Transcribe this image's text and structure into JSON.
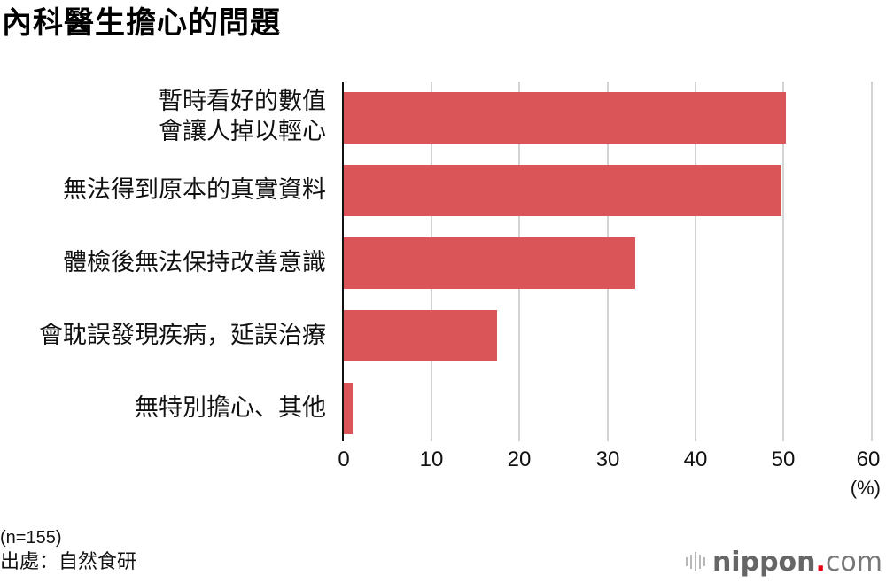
{
  "title": "內科醫生擔心的問題",
  "chart_data": {
    "type": "bar",
    "orientation": "horizontal",
    "title": "內科醫生擔心的問題",
    "categories": [
      "暫時看好的數值會讓人掉以輕心",
      "無法得到原本的真實資料",
      "體檢後無法保持改善意識",
      "會耽誤發現疾病，延誤治療",
      "無特別擔心、其他"
    ],
    "category_lines": [
      [
        "暫時看好的數值",
        "會讓人掉以輕心"
      ],
      [
        "無法得到原本的真實資料"
      ],
      [
        "體檢後無法保持改善意識"
      ],
      [
        "會耽誤發現疾病，延誤治療"
      ],
      [
        "無特別擔心、其他"
      ]
    ],
    "values": [
      50.2,
      49.7,
      33.1,
      17.4,
      1.0
    ],
    "xlabel": "(%)",
    "ylabel": "",
    "xlim": [
      0,
      60
    ],
    "xticks": [
      0,
      10,
      20,
      30,
      40,
      50,
      60
    ],
    "grid": true,
    "bar_color": "#d95558",
    "legend": null
  },
  "axis": {
    "ticks": [
      "0",
      "10",
      "20",
      "30",
      "40",
      "50",
      "60"
    ],
    "unit": "(%)"
  },
  "labels": {
    "bar1_line1": "暫時看好的數值",
    "bar1_line2": "會讓人掉以輕心",
    "bar2": "無法得到原本的真實資料",
    "bar3": "體檢後無法保持改善意識",
    "bar4": "會耽誤發現疾病，延誤治療",
    "bar5": "無特別擔心、其他"
  },
  "footer": {
    "sample": "(n=155)",
    "source": "出處：自然食研"
  },
  "logo": {
    "brand": "nippon",
    "dot": ".",
    "tld": "com",
    "dot_color": "#e60012"
  }
}
